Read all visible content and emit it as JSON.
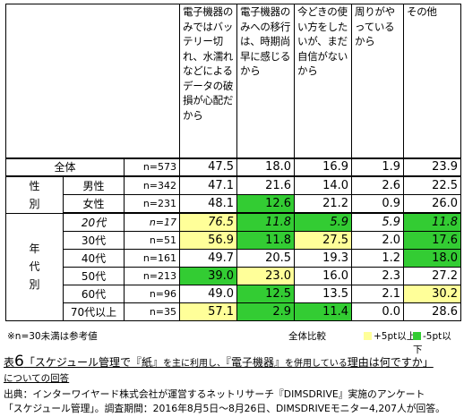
{
  "columns": [
    "電子機器のみではバッテリー切れ、水濡れなどによるデータの破損が心配だから",
    "電子機器のみへの移行は、時期尚早に感じるから",
    "今どきの使い方をしたいが、まだ自信がないから",
    "周りがやっているから",
    "その他"
  ],
  "total": {
    "label": "全体",
    "n": "n=573",
    "values": [
      "47.5",
      "18.0",
      "16.9",
      "1.9",
      "23.9"
    ]
  },
  "gender": {
    "label": "性\n別",
    "rows": [
      {
        "label": "男性",
        "n": "n=342",
        "values": [
          "47.1",
          "21.6",
          "14.0",
          "2.6",
          "22.5"
        ],
        "marks": [
          "",
          "",
          "",
          "",
          ""
        ]
      },
      {
        "label": "女性",
        "n": "n=231",
        "values": [
          "48.1",
          "12.6",
          "21.2",
          "0.9",
          "26.0"
        ],
        "marks": [
          "",
          "lo",
          "",
          "",
          ""
        ]
      }
    ]
  },
  "age": {
    "label": "年\n代\n別",
    "rows": [
      {
        "label": "20代",
        "n": "n=17",
        "values": [
          "76.5",
          "11.8",
          "5.9",
          "5.9",
          "11.8"
        ],
        "marks": [
          "hi",
          "lo",
          "lo",
          "",
          "lo"
        ]
      },
      {
        "label": "30代",
        "n": "n=51",
        "values": [
          "56.9",
          "11.8",
          "27.5",
          "2.0",
          "17.6"
        ],
        "marks": [
          "hi",
          "lo",
          "hi",
          "",
          "lo"
        ]
      },
      {
        "label": "40代",
        "n": "n=161",
        "values": [
          "49.7",
          "20.5",
          "19.3",
          "1.2",
          "18.0"
        ],
        "marks": [
          "",
          "",
          "",
          "",
          "lo"
        ]
      },
      {
        "label": "50代",
        "n": "n=213",
        "values": [
          "39.0",
          "23.0",
          "16.0",
          "2.3",
          "27.2"
        ],
        "marks": [
          "lo",
          "hi",
          "",
          "",
          ""
        ]
      },
      {
        "label": "60代",
        "n": "n=96",
        "values": [
          "49.0",
          "12.5",
          "13.5",
          "2.1",
          "30.2"
        ],
        "marks": [
          "",
          "lo",
          "",
          "",
          "hi"
        ]
      },
      {
        "label": "70代以上",
        "n": "n=35",
        "values": [
          "57.1",
          "2.9",
          "11.4",
          "0.0",
          "28.6"
        ],
        "marks": [
          "hi",
          "lo",
          "lo",
          "",
          ""
        ]
      }
    ]
  },
  "legend": {
    "note": "※n=30未満は参考値",
    "base": "全体比較",
    "plus": "+5pt以上",
    "minus": "-5pt以下",
    "plus_color": "#ffff99",
    "minus_color": "#33cc33"
  },
  "caption": {
    "prefix": "表",
    "number": "6",
    "parts": [
      {
        "t": "「スケジュール管理で",
        "s": false
      },
      {
        "t": "『紙』",
        "s": false
      },
      {
        "t": "を主に利用し、",
        "s": true
      },
      {
        "t": "『電子機器』",
        "s": false
      },
      {
        "t": "を併用している",
        "s": true
      },
      {
        "t": "理由は何ですか」",
        "s": false
      }
    ],
    "line2": "についての回答"
  },
  "source": "出典：インターワイヤード株式会社が運営するネットリサーチ『DIMSDRIVE』実施のアンケート\n「スケジュール管理」。調査期間：2016年8月5日～8月26日、DIMSDRIVEモニター4,207人が回答。"
}
